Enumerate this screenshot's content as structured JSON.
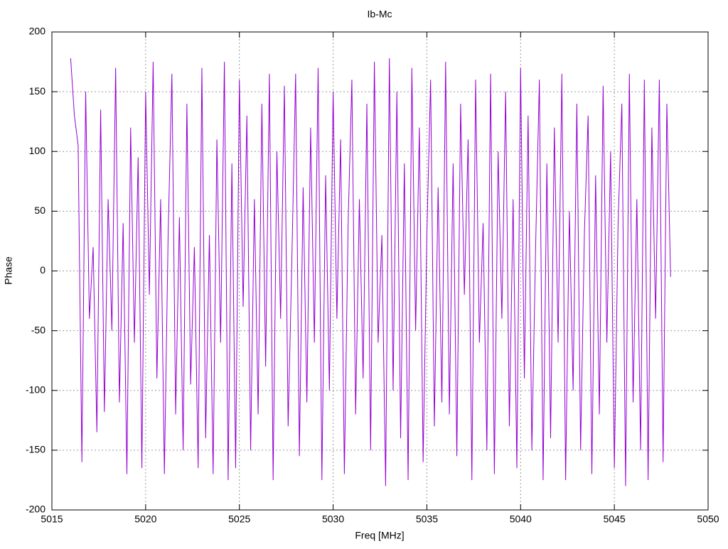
{
  "chart_data": {
    "type": "line",
    "title": "Ib-Mc",
    "x_label": "Freq [MHz]",
    "y_label": "Phase",
    "x": [
      5016,
      5016.2,
      5016.4,
      5016.6,
      5016.8,
      5017,
      5017.2,
      5017.4,
      5017.6,
      5017.8,
      5018,
      5018.2,
      5018.4,
      5018.6,
      5018.8,
      5019,
      5019.2,
      5019.4,
      5019.6,
      5019.8,
      5020,
      5020.2,
      5020.4,
      5020.6,
      5020.8,
      5021,
      5021.2,
      5021.4,
      5021.6,
      5021.8,
      5022,
      5022.2,
      5022.4,
      5022.6,
      5022.8,
      5023,
      5023.2,
      5023.4,
      5023.6,
      5023.8,
      5024,
      5024.2,
      5024.4,
      5024.6,
      5024.8,
      5025,
      5025.2,
      5025.4,
      5025.6,
      5025.8,
      5026,
      5026.2,
      5026.4,
      5026.6,
      5026.8,
      5027,
      5027.2,
      5027.4,
      5027.6,
      5027.8,
      5028,
      5028.2,
      5028.4,
      5028.6,
      5028.8,
      5029,
      5029.2,
      5029.4,
      5029.6,
      5029.8,
      5030,
      5030.2,
      5030.4,
      5030.6,
      5030.8,
      5031,
      5031.2,
      5031.4,
      5031.6,
      5031.8,
      5032,
      5032.2,
      5032.4,
      5032.6,
      5032.8,
      5033,
      5033.2,
      5033.4,
      5033.6,
      5033.8,
      5034,
      5034.2,
      5034.4,
      5034.6,
      5034.8,
      5035,
      5035.2,
      5035.4,
      5035.6,
      5035.8,
      5036,
      5036.2,
      5036.4,
      5036.6,
      5036.8,
      5037,
      5037.2,
      5037.4,
      5037.6,
      5037.8,
      5038,
      5038.2,
      5038.4,
      5038.6,
      5038.8,
      5039,
      5039.2,
      5039.4,
      5039.6,
      5039.8,
      5040,
      5040.2,
      5040.4,
      5040.6,
      5040.8,
      5041,
      5041.2,
      5041.4,
      5041.6,
      5041.8,
      5042,
      5042.2,
      5042.4,
      5042.6,
      5042.8,
      5043,
      5043.2,
      5043.4,
      5043.6,
      5043.8,
      5044,
      5044.2,
      5044.4,
      5044.6,
      5044.8,
      5045,
      5045.2,
      5045.4,
      5045.6,
      5045.8,
      5046,
      5046.2,
      5046.4,
      5046.6,
      5046.8,
      5047,
      5047.2,
      5047.4,
      5047.6,
      5047.8,
      5048
    ],
    "series": [
      {
        "color": "#9400d3",
        "values": [
          178,
          130,
          105,
          -160,
          150,
          -40,
          20,
          -135,
          135,
          -118,
          60,
          -50,
          170,
          -110,
          40,
          -170,
          120,
          -60,
          95,
          -165,
          150,
          -20,
          175,
          -90,
          60,
          -170,
          30,
          165,
          -120,
          45,
          -150,
          140,
          -95,
          20,
          -165,
          170,
          -140,
          30,
          -170,
          110,
          -60,
          175,
          -175,
          90,
          -165,
          160,
          -30,
          130,
          -150,
          60,
          -120,
          140,
          -80,
          165,
          -175,
          100,
          -40,
          155,
          -130,
          10,
          165,
          -155,
          70,
          -110,
          120,
          -60,
          170,
          -175,
          80,
          -100,
          150,
          -40,
          110,
          -170,
          40,
          160,
          -120,
          60,
          -90,
          140,
          -150,
          175,
          -60,
          30,
          -180,
          178,
          -100,
          150,
          -140,
          90,
          -175,
          170,
          -50,
          120,
          -160,
          30,
          160,
          -130,
          70,
          -110,
          175,
          -120,
          90,
          -155,
          140,
          -20,
          110,
          -175,
          160,
          -60,
          40,
          -150,
          165,
          -170,
          100,
          -40,
          150,
          -130,
          60,
          -165,
          170,
          -90,
          130,
          -150,
          20,
          160,
          -175,
          90,
          -140,
          120,
          -60,
          165,
          -175,
          50,
          -100,
          140,
          -150,
          30,
          130,
          -170,
          80,
          -120,
          155,
          -60,
          100,
          -165,
          40,
          140,
          -180,
          165,
          -110,
          60,
          -150,
          160,
          -175,
          120,
          -40,
          160,
          -160,
          140,
          -5
        ]
      }
    ],
    "xlim": [
      5015,
      5050
    ],
    "xticks": [
      5015,
      5020,
      5025,
      5030,
      5035,
      5040,
      5045,
      5050
    ],
    "ylim": [
      -200,
      200
    ],
    "yticks": [
      -200,
      -150,
      -100,
      -50,
      0,
      50,
      100,
      150,
      200
    ],
    "grid": true
  }
}
